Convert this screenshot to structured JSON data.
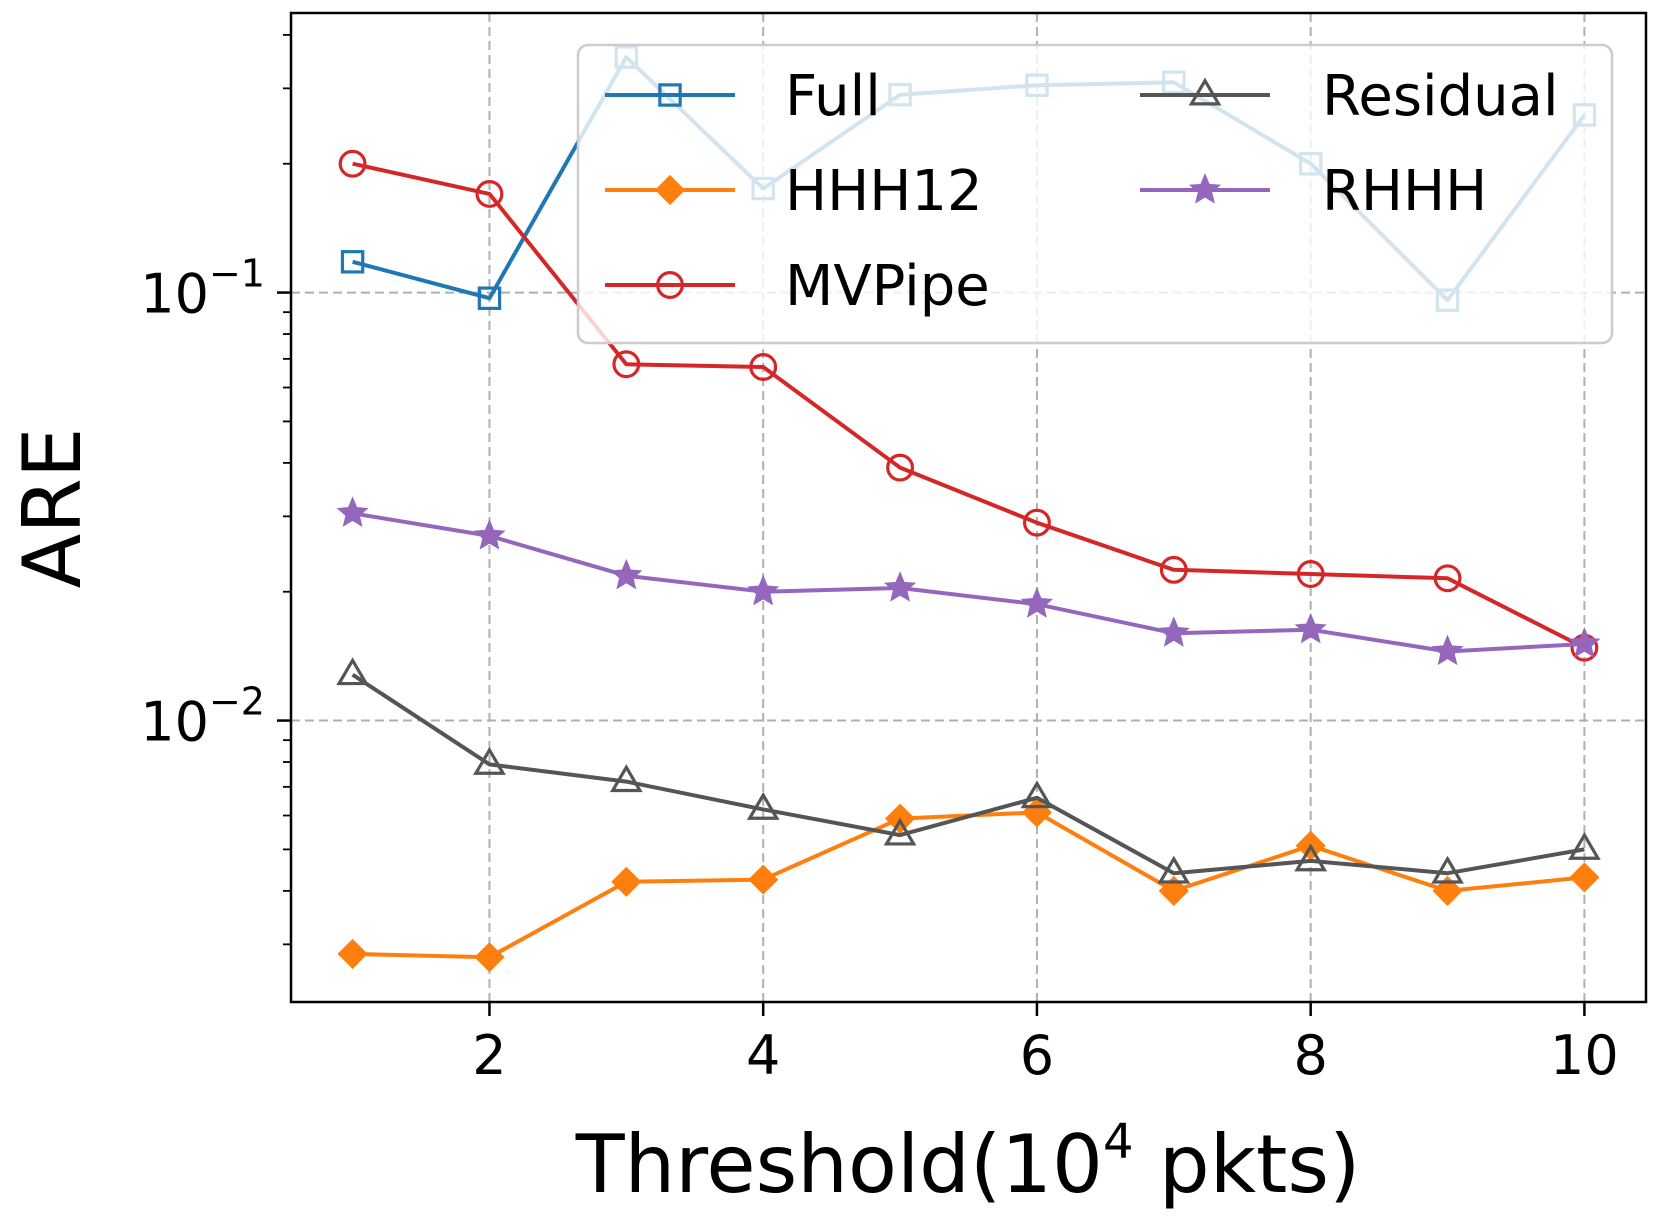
{
  "chart_data": {
    "type": "line",
    "xlabel": "Threshold(10",
    "xlabel_sup": "4",
    "xlabel_suffix": " pkts)",
    "ylabel": "ARE",
    "yscale": "log",
    "xlim": [
      0.55,
      10.45
    ],
    "ylim": [
      0.0022,
      0.45
    ],
    "xticks": [
      2,
      4,
      6,
      8,
      10
    ],
    "yticks": [
      {
        "value": 0.1,
        "base": "10",
        "exp": "−1"
      },
      {
        "value": 0.01,
        "base": "10",
        "exp": "−2"
      }
    ],
    "grid": true,
    "legend_position": "upper-right",
    "legend_columns": 2,
    "x": [
      1,
      2,
      3,
      4,
      5,
      6,
      7,
      8,
      9,
      10
    ],
    "series": [
      {
        "name": "Full",
        "color": "#1f77b4",
        "marker": "square-open",
        "values": [
          0.118,
          0.097,
          0.355,
          0.175,
          0.29,
          0.305,
          0.31,
          0.2,
          0.096,
          0.26
        ]
      },
      {
        "name": "HHH12",
        "color": "#ff7f0e",
        "marker": "diamond-filled",
        "values": [
          0.00285,
          0.0028,
          0.0042,
          0.00425,
          0.0059,
          0.0061,
          0.004,
          0.0051,
          0.004,
          0.0043
        ]
      },
      {
        "name": "MVPipe",
        "color": "#d62728",
        "marker": "circle-open",
        "values": [
          0.2,
          0.17,
          0.068,
          0.067,
          0.039,
          0.029,
          0.0225,
          0.022,
          0.0215,
          0.0148
        ]
      },
      {
        "name": "Residual",
        "color": "#555555",
        "marker": "triangle-open",
        "values": [
          0.0128,
          0.0079,
          0.0072,
          0.0062,
          0.0054,
          0.0066,
          0.0044,
          0.0047,
          0.0044,
          0.005
        ]
      },
      {
        "name": "RHHH",
        "color": "#9467bd",
        "marker": "star-filled",
        "values": [
          0.0305,
          0.027,
          0.0218,
          0.02,
          0.0204,
          0.0187,
          0.016,
          0.0163,
          0.0145,
          0.0151
        ]
      }
    ]
  }
}
